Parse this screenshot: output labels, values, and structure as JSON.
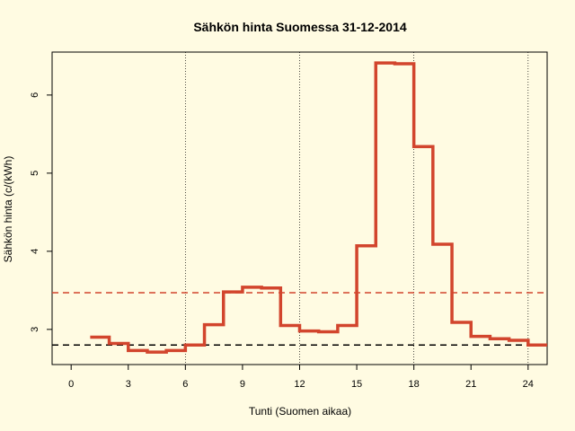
{
  "chart_data": {
    "type": "line",
    "step": true,
    "title": "Sähkön hinta Suomessa 31-12-2014",
    "xlabel": "Tunti (Suomen aikaa)",
    "ylabel": "Sähkön hinta (c/(kWh)",
    "xlim": [
      -1,
      25
    ],
    "ylim": [
      2.55,
      6.55
    ],
    "xticks": [
      0,
      3,
      6,
      9,
      12,
      15,
      18,
      21,
      24
    ],
    "yticks": [
      3,
      4,
      5,
      6
    ],
    "vlines": [
      6,
      12,
      18,
      24
    ],
    "series": [
      {
        "color": "#d2452d",
        "x": [
          1,
          2,
          3,
          4,
          5,
          6,
          7,
          8,
          9,
          10,
          11,
          12,
          13,
          14,
          15,
          16,
          17,
          18,
          19,
          20,
          21,
          22,
          23,
          24
        ],
        "values": [
          2.9,
          2.82,
          2.73,
          2.71,
          2.73,
          2.8,
          3.06,
          3.48,
          3.54,
          3.53,
          3.05,
          2.98,
          2.97,
          3.05,
          4.07,
          6.41,
          6.4,
          5.34,
          4.09,
          3.09,
          2.91,
          2.88,
          2.86,
          2.8
        ]
      }
    ],
    "hlines": [
      {
        "value": 3.47,
        "color": "#d2452d",
        "style": "dashed"
      },
      {
        "value": 2.8,
        "color": "#000000",
        "style": "dashed"
      }
    ]
  }
}
